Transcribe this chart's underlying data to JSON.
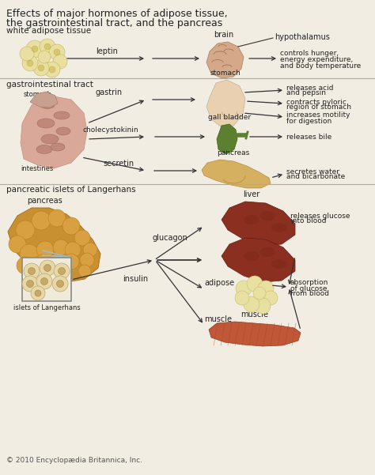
{
  "title_line1": "Effects of major hormones of adipose tissue,",
  "title_line2": "the gastrointestinal tract, and the pancreas",
  "bg_color": "#f2ede2",
  "section1_label": "white adipose tissue",
  "section2_label": "gastrointestinal tract",
  "section3_label": "pancreatic islets of Langerhans",
  "copyright": "© 2010 Encyclopædia Britannica, Inc.",
  "divider_color": "#aaaaaa",
  "arrow_color": "#333333",
  "text_color": "#222222",
  "title_color": "#000000"
}
